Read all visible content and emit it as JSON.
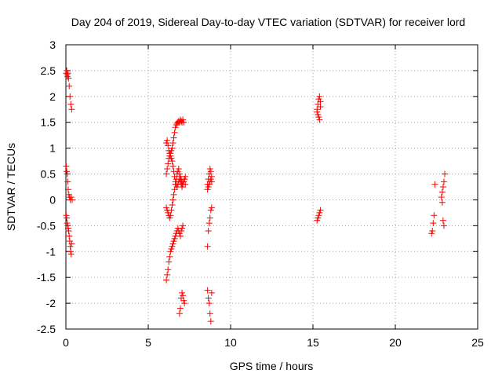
{
  "chart_data": {
    "type": "scatter",
    "title": "Day 204 of 2019, Sidereal Day-to-day VTEC variation (SDTVAR) for receiver lord",
    "xlabel": "GPS time / hours",
    "ylabel": "SDTVAR / TECUs",
    "xlim": [
      0,
      25
    ],
    "ylim": [
      -2.5,
      3
    ],
    "xticks": [
      0,
      5,
      10,
      15,
      20,
      25
    ],
    "xtick_labels": [
      "0",
      "5",
      "10",
      "15",
      "20",
      "25"
    ],
    "yticks": [
      -2.5,
      -2,
      -1.5,
      -1,
      -0.5,
      0,
      0.5,
      1,
      1.5,
      2,
      2.5,
      3
    ],
    "ytick_labels": [
      "-2.5",
      "-2",
      "-1.5",
      "-1",
      "-0.5",
      "0",
      "0.5",
      "1",
      "1.5",
      "2",
      "2.5",
      "3"
    ],
    "grid": true,
    "marker": "plus",
    "color": "#ff0000",
    "series": [
      {
        "name": "SDTVAR",
        "x": [
          0.02,
          0.05,
          0.08,
          0.1,
          0.13,
          0.16,
          0.2,
          0.25,
          0.3,
          0.35,
          0.02,
          0.05,
          0.08,
          0.11,
          0.14,
          0.18,
          0.22,
          0.27,
          0.32,
          0.38,
          0.02,
          0.05,
          0.08,
          0.11,
          0.14,
          0.17,
          0.2,
          0.23,
          0.26,
          0.29,
          0.32,
          0.35,
          6.1,
          6.15,
          6.2,
          6.25,
          6.3,
          6.35,
          6.4,
          6.45,
          6.5,
          6.55,
          6.6,
          6.65,
          6.7,
          6.75,
          6.8,
          6.85,
          6.9,
          6.95,
          7.0,
          7.05,
          7.1,
          7.15,
          7.2,
          7.25,
          6.1,
          6.15,
          6.2,
          6.25,
          6.3,
          6.35,
          6.4,
          6.45,
          6.5,
          6.55,
          6.6,
          6.65,
          6.7,
          6.75,
          6.8,
          6.85,
          6.9,
          6.95,
          7.0,
          7.05,
          7.1,
          7.15,
          6.1,
          6.15,
          6.2,
          6.25,
          6.3,
          6.35,
          6.4,
          6.45,
          6.5,
          6.55,
          6.6,
          6.65,
          6.7,
          6.75,
          6.8,
          6.85,
          6.9,
          6.95,
          7.0,
          7.05,
          7.1,
          7.15,
          7.2,
          7.25,
          6.1,
          6.15,
          6.2,
          6.25,
          6.3,
          6.35,
          6.4,
          6.45,
          6.5,
          6.55,
          6.6,
          6.65,
          6.7,
          6.75,
          6.8,
          6.85,
          6.9,
          6.95,
          7.0,
          7.05,
          7.1,
          6.9,
          6.95,
          7.0,
          7.05,
          7.1,
          7.15,
          7.2,
          8.6,
          8.65,
          8.7,
          8.75,
          8.8,
          8.85,
          8.6,
          8.65,
          8.7,
          8.75,
          8.8,
          8.85,
          8.6,
          8.65,
          8.7,
          8.75,
          8.8,
          8.85,
          8.6,
          8.65,
          8.7,
          8.75,
          8.8,
          8.85,
          15.25,
          15.3,
          15.35,
          15.4,
          15.45,
          15.25,
          15.3,
          15.35,
          15.4,
          15.45,
          15.25,
          15.3,
          15.35,
          15.4,
          15.45,
          22.2,
          22.25,
          22.3,
          22.35,
          22.4,
          22.8,
          22.85,
          22.9,
          22.95,
          23.0,
          22.85,
          22.9,
          22.95
        ],
        "y": [
          2.45,
          2.5,
          2.42,
          2.38,
          2.45,
          2.35,
          2.2,
          2.0,
          1.85,
          1.75,
          0.65,
          0.55,
          0.5,
          0.35,
          0.2,
          0.1,
          0.05,
          0.0,
          0.05,
          0.0,
          -0.3,
          -0.35,
          -0.45,
          -0.5,
          -0.55,
          -0.6,
          -0.7,
          -0.8,
          -0.9,
          -1.0,
          -1.05,
          -0.85,
          1.1,
          1.15,
          1.05,
          0.95,
          0.9,
          0.85,
          0.8,
          0.75,
          0.65,
          0.55,
          0.45,
          0.35,
          0.3,
          0.25,
          0.3,
          0.35,
          0.4,
          0.35,
          0.3,
          0.25,
          0.3,
          0.35,
          0.4,
          0.3,
          0.5,
          0.6,
          0.7,
          0.8,
          0.85,
          0.9,
          0.95,
          1.0,
          1.1,
          1.2,
          1.3,
          1.4,
          1.45,
          1.48,
          1.5,
          1.52,
          1.5,
          1.55,
          1.52,
          1.5,
          1.55,
          1.5,
          -0.15,
          -0.2,
          -0.25,
          -0.3,
          -0.35,
          -0.3,
          -0.2,
          -0.1,
          0.0,
          0.1,
          0.2,
          0.3,
          0.4,
          0.5,
          0.55,
          0.6,
          0.5,
          0.45,
          0.4,
          0.35,
          0.3,
          0.35,
          0.4,
          0.45,
          -1.55,
          -1.45,
          -1.35,
          -1.2,
          -1.1,
          -1.0,
          -0.95,
          -0.9,
          -0.85,
          -0.8,
          -0.75,
          -0.7,
          -0.65,
          -0.6,
          -0.55,
          -0.6,
          -0.65,
          -0.7,
          -0.6,
          -0.55,
          -0.5,
          -2.2,
          -2.1,
          -1.9,
          -1.8,
          -1.85,
          -1.95,
          -2.0,
          -0.9,
          -0.6,
          -0.45,
          -0.35,
          -0.2,
          -0.15,
          0.3,
          0.4,
          0.5,
          0.6,
          0.55,
          0.35,
          -1.75,
          -1.9,
          -2.0,
          -2.2,
          -2.35,
          -1.8,
          0.2,
          0.25,
          0.3,
          0.35,
          0.4,
          0.45,
          1.75,
          1.85,
          1.95,
          2.0,
          1.9,
          1.7,
          1.65,
          1.6,
          1.55,
          1.8,
          -0.4,
          -0.35,
          -0.3,
          -0.25,
          -0.2,
          -0.65,
          -0.6,
          -0.45,
          -0.3,
          0.3,
          0.05,
          0.15,
          0.25,
          0.35,
          0.5,
          -0.05,
          -0.4,
          -0.5
        ]
      }
    ]
  }
}
